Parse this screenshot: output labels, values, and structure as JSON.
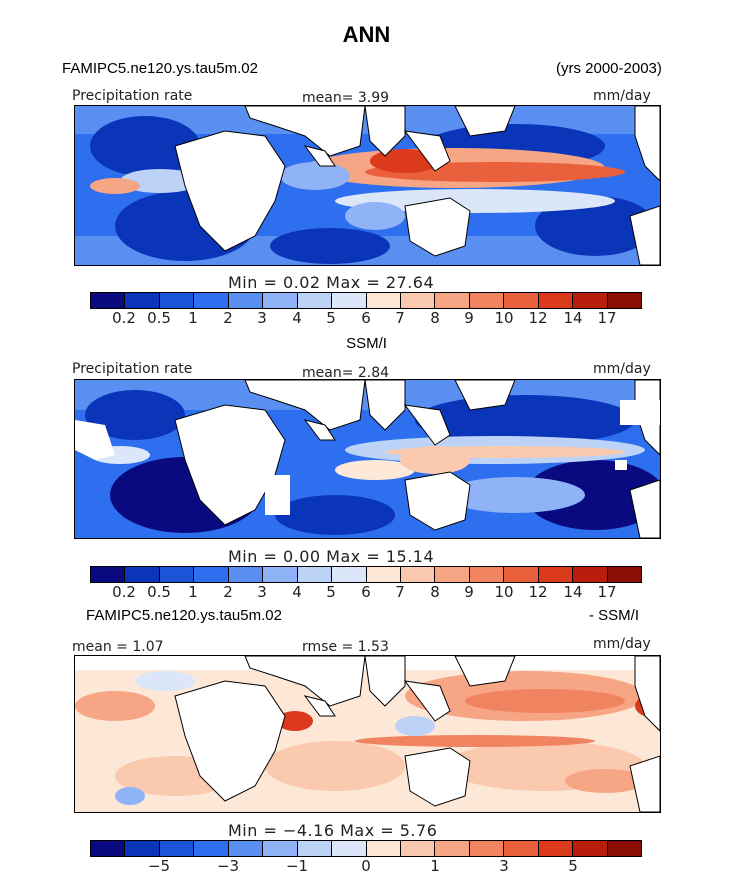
{
  "title": "ANN",
  "colors": [
    "#0a0a80",
    "#0b35b8",
    "#1a55d8",
    "#2e6fef",
    "#5a8ff2",
    "#8fb3f6",
    "#bcd3f7",
    "#dbe7f9",
    "#fde7d7",
    "#fbc9ae",
    "#f6a585",
    "#f08460",
    "#ea5f3c",
    "#dc3a1c",
    "#b91e0c",
    "#8b0d06"
  ],
  "panels": [
    {
      "header_left": "FAMIPC5.ne120.ys.tau5m.02",
      "header_right": "(yrs 2000-2003)",
      "label_left": "Precipitation rate",
      "label_center": "mean=   3.99",
      "label_right": "mm/day",
      "stats": "Min =    0.02 Max =  27.64",
      "tick_labels": [
        "0.2",
        "0.5",
        "1",
        "2",
        "3",
        "4",
        "5",
        "6",
        "7",
        "8",
        "9",
        "10",
        "12",
        "14",
        "17"
      ]
    },
    {
      "header_center": "SSM/I",
      "label_left": "Precipitation rate",
      "label_center": "mean=   2.84",
      "label_right": "mm/day",
      "stats": "Min =    0.00 Max =  15.14",
      "tick_labels": [
        "0.2",
        "0.5",
        "1",
        "2",
        "3",
        "4",
        "5",
        "6",
        "7",
        "8",
        "9",
        "10",
        "12",
        "14",
        "17"
      ]
    },
    {
      "header_left": "FAMIPC5.ne120.ys.tau5m.02",
      "header_right": "- SSM/I",
      "label_left": "mean =   1.07",
      "label_center": "rmse =   1.53",
      "label_right": "mm/day",
      "stats": "Min =  −4.16 Max =   5.76",
      "tick_labels": [
        "−5",
        "−3",
        "−1",
        "0",
        "1",
        "3",
        "5"
      ]
    }
  ],
  "chart_data": [
    {
      "type": "heatmap",
      "title": "ANN",
      "subtitle": "FAMIPC5.ne120.ys.tau5m.02 (yrs 2000-2003)",
      "variable": "Precipitation rate",
      "units": "mm/day",
      "mean": 3.99,
      "min": 0.02,
      "max": 27.64,
      "contour_levels": [
        0.2,
        0.5,
        1,
        2,
        3,
        4,
        5,
        6,
        7,
        8,
        9,
        10,
        12,
        14,
        17
      ]
    },
    {
      "type": "heatmap",
      "title": "SSM/I",
      "variable": "Precipitation rate",
      "units": "mm/day",
      "mean": 2.84,
      "min": 0.0,
      "max": 15.14,
      "contour_levels": [
        0.2,
        0.5,
        1,
        2,
        3,
        4,
        5,
        6,
        7,
        8,
        9,
        10,
        12,
        14,
        17
      ]
    },
    {
      "type": "heatmap",
      "title": "FAMIPC5.ne120.ys.tau5m.02 - SSM/I",
      "units": "mm/day",
      "mean": 1.07,
      "rmse": 1.53,
      "min": -4.16,
      "max": 5.76,
      "contour_levels": [
        -5,
        -3,
        -1,
        0,
        1,
        3,
        5
      ]
    }
  ]
}
